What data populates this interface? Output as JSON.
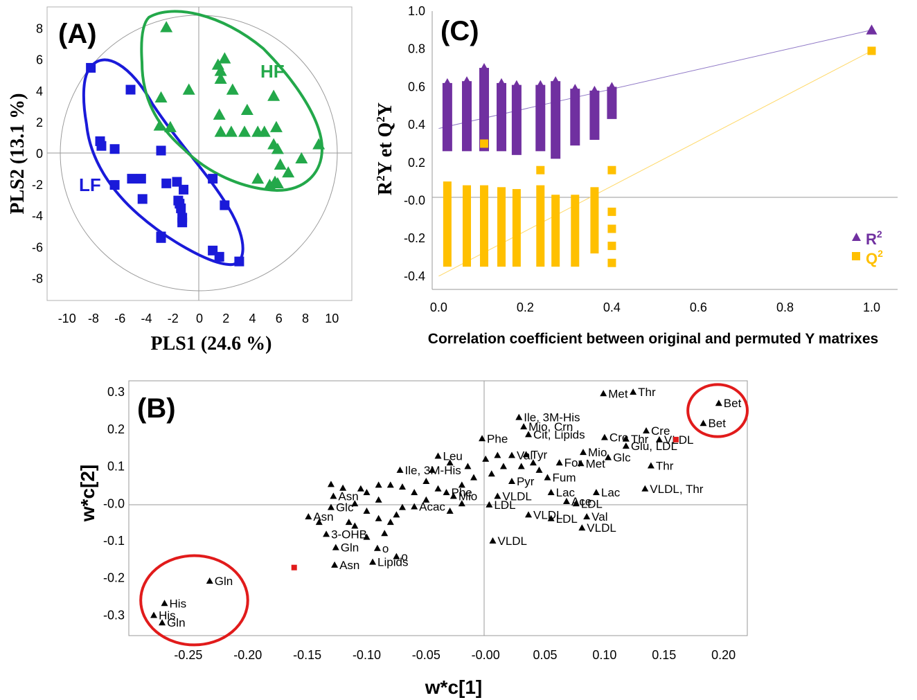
{
  "panels": {
    "A": {
      "tag": "(A)"
    },
    "B": {
      "tag": "(B)"
    },
    "C": {
      "tag": "(C)"
    }
  },
  "chart_data": [
    {
      "id": "A",
      "type": "scatter",
      "xlabel": "PLS1 (24.6 %)",
      "ylabel": "PLS2 (13.1 %)",
      "xlim": [
        -11.5,
        11.5
      ],
      "ylim": [
        -9.4,
        9.4
      ],
      "xticks": [
        -10,
        -8,
        -6,
        -4,
        -2,
        0,
        2,
        4,
        6,
        8,
        10
      ],
      "yticks": [
        -8,
        -6,
        -4,
        -2,
        0,
        2,
        4,
        6,
        8
      ],
      "colors": {
        "LF": "#1a1ad9",
        "HF": "#23a84a"
      },
      "series": [
        {
          "name": "LF",
          "marker": "square",
          "points": [
            [
              -8.2,
              5.5
            ],
            [
              -7.5,
              0.8
            ],
            [
              -7.4,
              0.5
            ],
            [
              -6.4,
              0.3
            ],
            [
              -6.4,
              -2.0
            ],
            [
              -5.2,
              4.1
            ],
            [
              -5.1,
              -1.6
            ],
            [
              -4.4,
              -1.6
            ],
            [
              -4.3,
              -2.9
            ],
            [
              -2.9,
              0.2
            ],
            [
              -2.9,
              -5.3
            ],
            [
              -2.5,
              -1.9
            ],
            [
              -1.7,
              -1.8
            ],
            [
              -1.6,
              -3.0
            ],
            [
              -1.5,
              -3.2
            ],
            [
              -1.4,
              -3.5
            ],
            [
              -1.3,
              -4.1
            ],
            [
              -1.3,
              -4.4
            ],
            [
              -1.2,
              -2.3
            ],
            [
              1.0,
              -1.6
            ],
            [
              1.9,
              -3.3
            ],
            [
              1.5,
              -6.6
            ],
            [
              1.0,
              -6.2
            ],
            [
              3.0,
              -6.9
            ],
            [
              -2.9,
              -5.4
            ]
          ]
        },
        {
          "name": "HF",
          "marker": "triangle",
          "points": [
            [
              -2.5,
              8.1
            ],
            [
              -2.9,
              3.6
            ],
            [
              -3.0,
              1.8
            ],
            [
              -2.2,
              1.7
            ],
            [
              -0.8,
              4.1
            ],
            [
              1.4,
              5.7
            ],
            [
              1.9,
              6.1
            ],
            [
              1.6,
              4.8
            ],
            [
              1.6,
              5.3
            ],
            [
              2.5,
              4.1
            ],
            [
              1.5,
              2.5
            ],
            [
              1.6,
              1.4
            ],
            [
              2.4,
              1.4
            ],
            [
              3.4,
              1.4
            ],
            [
              3.6,
              2.8
            ],
            [
              4.4,
              1.4
            ],
            [
              4.9,
              1.4
            ],
            [
              5.6,
              0.6
            ],
            [
              5.9,
              0.3
            ],
            [
              6.1,
              -0.7
            ],
            [
              6.7,
              -1.2
            ],
            [
              5.7,
              -1.8
            ],
            [
              5.9,
              -1.9
            ],
            [
              4.4,
              -1.6
            ],
            [
              5.6,
              3.7
            ],
            [
              7.7,
              -0.3
            ],
            [
              9.0,
              0.6
            ],
            [
              5.8,
              1.7
            ],
            [
              5.3,
              -2.0
            ]
          ]
        }
      ]
    },
    {
      "id": "C",
      "type": "scatter",
      "xlabel": "Correlation coefficient between original and permuted Y matrixes",
      "ylabel": "R²Y et Q²Y",
      "xlim": [
        -0.015,
        1.06
      ],
      "ylim": [
        -0.47,
        1.0
      ],
      "xticks": [
        0.0,
        0.2,
        0.4,
        0.6,
        0.8,
        1.0
      ],
      "yticks": [
        1.0,
        0.8,
        0.6,
        0.4,
        0.2,
        0.0,
        -0.2,
        -0.4
      ],
      "ytick_labels": [
        "1.0",
        "0.8",
        "0.6",
        "0.4",
        "0.2",
        "-0.0",
        "-0.2",
        "-0.4"
      ],
      "colors": {
        "R2": "#7030a0",
        "Q2": "#ffc000"
      },
      "legend": {
        "position": "bottom-right",
        "entries": [
          {
            "key": "R2",
            "base": "R",
            "sup": "2"
          },
          {
            "key": "Q2",
            "base": "Q",
            "sup": "2"
          }
        ]
      },
      "r2_columns": [
        {
          "x": 0.02,
          "min": 0.26,
          "max": 0.62
        },
        {
          "x": 0.065,
          "min": 0.26,
          "max": 0.63
        },
        {
          "x": 0.105,
          "min": 0.26,
          "max": 0.7
        },
        {
          "x": 0.145,
          "min": 0.26,
          "max": 0.62
        },
        {
          "x": 0.18,
          "min": 0.24,
          "max": 0.61
        },
        {
          "x": 0.235,
          "min": 0.26,
          "max": 0.61
        },
        {
          "x": 0.27,
          "min": 0.22,
          "max": 0.63
        },
        {
          "x": 0.315,
          "min": 0.29,
          "max": 0.59
        },
        {
          "x": 0.36,
          "min": 0.32,
          "max": 0.58
        },
        {
          "x": 0.4,
          "min": 0.43,
          "max": 0.6
        }
      ],
      "q2_columns": [
        {
          "x": 0.02,
          "min": -0.35,
          "max": 0.1
        },
        {
          "x": 0.065,
          "min": -0.35,
          "max": 0.08
        },
        {
          "x": 0.105,
          "min": -0.35,
          "max": 0.08
        },
        {
          "x": 0.145,
          "min": -0.35,
          "max": 0.07
        },
        {
          "x": 0.18,
          "min": -0.35,
          "max": 0.06
        },
        {
          "x": 0.235,
          "min": -0.35,
          "max": 0.08
        },
        {
          "x": 0.27,
          "min": -0.35,
          "max": 0.03
        },
        {
          "x": 0.315,
          "min": -0.35,
          "max": 0.03
        },
        {
          "x": 0.36,
          "min": -0.28,
          "max": 0.07
        }
      ],
      "q2_extra": [
        [
          0.105,
          0.3
        ],
        [
          0.235,
          0.16
        ],
        [
          0.4,
          0.16
        ],
        [
          0.4,
          -0.06
        ],
        [
          0.4,
          -0.15
        ],
        [
          0.4,
          -0.24
        ],
        [
          0.4,
          -0.33
        ],
        [
          1.0,
          0.79
        ]
      ],
      "r2_extra": [
        [
          1.0,
          0.9
        ]
      ],
      "r2_line": [
        [
          0.0,
          0.38
        ],
        [
          1.0,
          0.9
        ]
      ],
      "q2_line": [
        [
          0.0,
          -0.4
        ],
        [
          1.0,
          0.79
        ]
      ]
    },
    {
      "id": "B",
      "type": "scatter",
      "xlabel": "w*c[1]",
      "ylabel": "w*c[2]",
      "xlim": [
        -0.3,
        0.22
      ],
      "ylim": [
        -0.355,
        0.33
      ],
      "xticks": [
        -0.25,
        -0.2,
        -0.15,
        -0.1,
        -0.05,
        0.0,
        0.05,
        0.1,
        0.15,
        0.2
      ],
      "xtick_labels": [
        "-0.25",
        "-0.20",
        "-0.15",
        "-0.10",
        "-0.05",
        "-0.00",
        "0.05",
        "0.10",
        "0.15",
        "0.20"
      ],
      "yticks": [
        0.3,
        0.2,
        0.1,
        0.0,
        -0.1,
        -0.2,
        -0.3
      ],
      "ytick_labels": [
        "0.3",
        "0.2",
        "0.1",
        "-0.0",
        "-0.1",
        "-0.2",
        "-0.3"
      ],
      "red_points": [
        [
          -0.161,
          -0.172
        ],
        [
          0.16,
          0.172
        ]
      ],
      "highlight_color": "#e11b1b",
      "points": [
        [
          0.099,
          0.296,
          "Met"
        ],
        [
          0.124,
          0.3,
          "Thr"
        ],
        [
          0.196,
          0.27,
          "Bet"
        ],
        [
          0.183,
          0.216,
          "Bet"
        ],
        [
          0.028,
          0.232,
          "Ile, 3M-His"
        ],
        [
          0.032,
          0.207,
          "Mio, Crn"
        ],
        [
          0.036,
          0.186,
          "Cit, Lipids"
        ],
        [
          0.1,
          0.178,
          "Cre"
        ],
        [
          0.118,
          0.174,
          "Thr"
        ],
        [
          0.135,
          0.196,
          "Cre"
        ],
        [
          0.146,
          0.172,
          "VLDL"
        ],
        [
          0.118,
          0.155,
          "Glu, LDL"
        ],
        [
          -0.003,
          0.175,
          "Phe"
        ],
        [
          0.022,
          0.13,
          "Val"
        ],
        [
          0.034,
          0.132,
          "Tyr"
        ],
        [
          0.082,
          0.138,
          "Mio"
        ],
        [
          0.103,
          0.124,
          "Glc"
        ],
        [
          0.062,
          0.11,
          "For"
        ],
        [
          0.08,
          0.108,
          "Met"
        ],
        [
          0.139,
          0.102,
          "Thr"
        ],
        [
          0.052,
          0.07,
          "Fum"
        ],
        [
          0.022,
          0.06,
          "Pyr"
        ],
        [
          0.134,
          0.04,
          "VLDL, Thr"
        ],
        [
          0.093,
          0.03,
          "Lac"
        ],
        [
          0.055,
          0.03,
          "Lac"
        ],
        [
          0.068,
          0.006,
          "Ace"
        ],
        [
          0.076,
          0.0,
          "LDL"
        ],
        [
          0.01,
          0.02,
          "VLDL"
        ],
        [
          0.003,
          -0.003,
          "LDL"
        ],
        [
          0.036,
          -0.03,
          "VLDL"
        ],
        [
          0.055,
          -0.04,
          "LDL"
        ],
        [
          0.085,
          -0.035,
          "Val"
        ],
        [
          0.081,
          -0.065,
          "VLDL"
        ],
        [
          0.006,
          -0.1,
          "VLDL"
        ],
        [
          -0.04,
          0.128,
          "Leu"
        ],
        [
          -0.072,
          0.09,
          "Ile, 3M-His"
        ],
        [
          -0.033,
          0.03,
          "Phe"
        ],
        [
          -0.027,
          0.02,
          "Mio"
        ],
        [
          -0.06,
          -0.008,
          "Acac"
        ],
        [
          -0.128,
          0.02,
          "Asn"
        ],
        [
          -0.149,
          -0.035,
          "Asn"
        ],
        [
          -0.13,
          -0.01,
          "Glc"
        ],
        [
          -0.126,
          -0.118,
          "Gln"
        ],
        [
          -0.134,
          -0.082,
          "3-OHB"
        ],
        [
          -0.091,
          -0.12,
          "o"
        ],
        [
          -0.075,
          -0.142,
          "o"
        ],
        [
          -0.127,
          -0.165,
          "Asn"
        ],
        [
          -0.095,
          -0.157,
          "Lipids"
        ],
        [
          -0.232,
          -0.208,
          "Gln"
        ],
        [
          -0.27,
          -0.268,
          "His"
        ],
        [
          -0.279,
          -0.3,
          "His"
        ],
        [
          -0.272,
          -0.32,
          "Gln"
        ]
      ],
      "labels_only": [
        [
          -0.13,
          0.052
        ],
        [
          -0.12,
          0.042
        ],
        [
          -0.09,
          0.05
        ],
        [
          -0.08,
          0.05
        ],
        [
          -0.07,
          0.045
        ],
        [
          -0.05,
          0.06
        ],
        [
          -0.04,
          0.04
        ],
        [
          -0.02,
          0.05
        ],
        [
          -0.01,
          0.07
        ],
        [
          0.0,
          0.12
        ],
        [
          0.01,
          0.13
        ],
        [
          0.03,
          0.1
        ],
        [
          0.04,
          0.11
        ],
        [
          -0.11,
          0.0
        ],
        [
          -0.1,
          -0.02
        ],
        [
          -0.09,
          -0.04
        ],
        [
          -0.08,
          -0.05
        ],
        [
          -0.11,
          -0.06
        ],
        [
          -0.07,
          -0.01
        ],
        [
          -0.05,
          0.01
        ],
        [
          -0.02,
          0.0
        ],
        [
          -0.03,
          -0.02
        ],
        [
          -0.115,
          -0.05
        ],
        [
          -0.085,
          -0.08
        ],
        [
          -0.1,
          -0.09
        ],
        [
          -0.14,
          -0.05
        ],
        [
          -0.1,
          0.03
        ],
        [
          -0.06,
          0.03
        ],
        [
          -0.045,
          0.09
        ],
        [
          -0.03,
          0.11
        ],
        [
          -0.015,
          0.1
        ],
        [
          0.005,
          0.08
        ],
        [
          0.045,
          0.09
        ],
        [
          0.015,
          0.1
        ],
        [
          -0.105,
          0.04
        ],
        [
          -0.09,
          0.01
        ],
        [
          -0.075,
          -0.03
        ]
      ],
      "ellipses": [
        {
          "cx": -0.245,
          "cy": -0.26,
          "rx": 0.045,
          "ry": 0.12
        },
        {
          "cx": 0.195,
          "cy": 0.25,
          "rx": 0.025,
          "ry": 0.07
        }
      ]
    }
  ]
}
